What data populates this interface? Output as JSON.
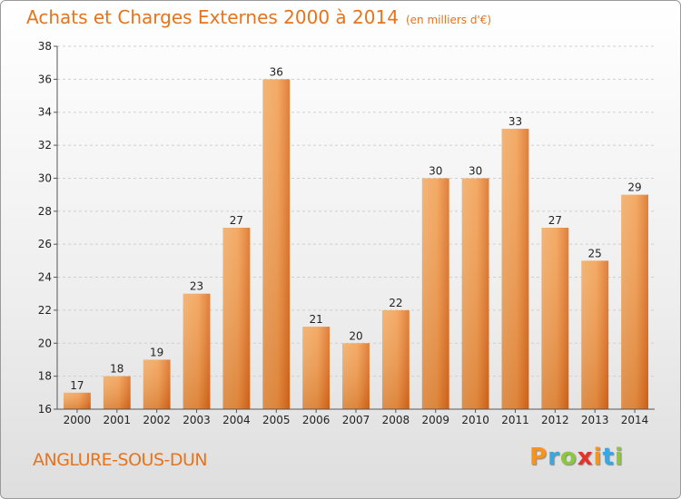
{
  "title": "Achats et Charges Externes 2000 à 2014",
  "subtitle": "(en milliers d'€)",
  "location": "ANGLURE-SOUS-DUN",
  "brand": {
    "letters": [
      "P",
      "r",
      "o",
      "x",
      "i",
      "t",
      "i"
    ],
    "colors": [
      "#f7941d",
      "#3aa7e0",
      "#8dc63f",
      "#e5332a",
      "#f7941d",
      "#3aa7e0",
      "#8dc63f"
    ]
  },
  "chart_data": {
    "type": "bar",
    "categories": [
      "2000",
      "2001",
      "2002",
      "2003",
      "2004",
      "2005",
      "2006",
      "2007",
      "2008",
      "2009",
      "2010",
      "2011",
      "2012",
      "2013",
      "2014"
    ],
    "values": [
      17,
      18,
      19,
      23,
      27,
      36,
      21,
      20,
      22,
      30,
      30,
      33,
      27,
      25,
      29
    ],
    "ylim": [
      16,
      38
    ],
    "yticks": [
      16,
      18,
      20,
      22,
      24,
      26,
      28,
      30,
      32,
      34,
      36,
      38
    ],
    "grid": true,
    "bar_color": "#e8782a"
  }
}
